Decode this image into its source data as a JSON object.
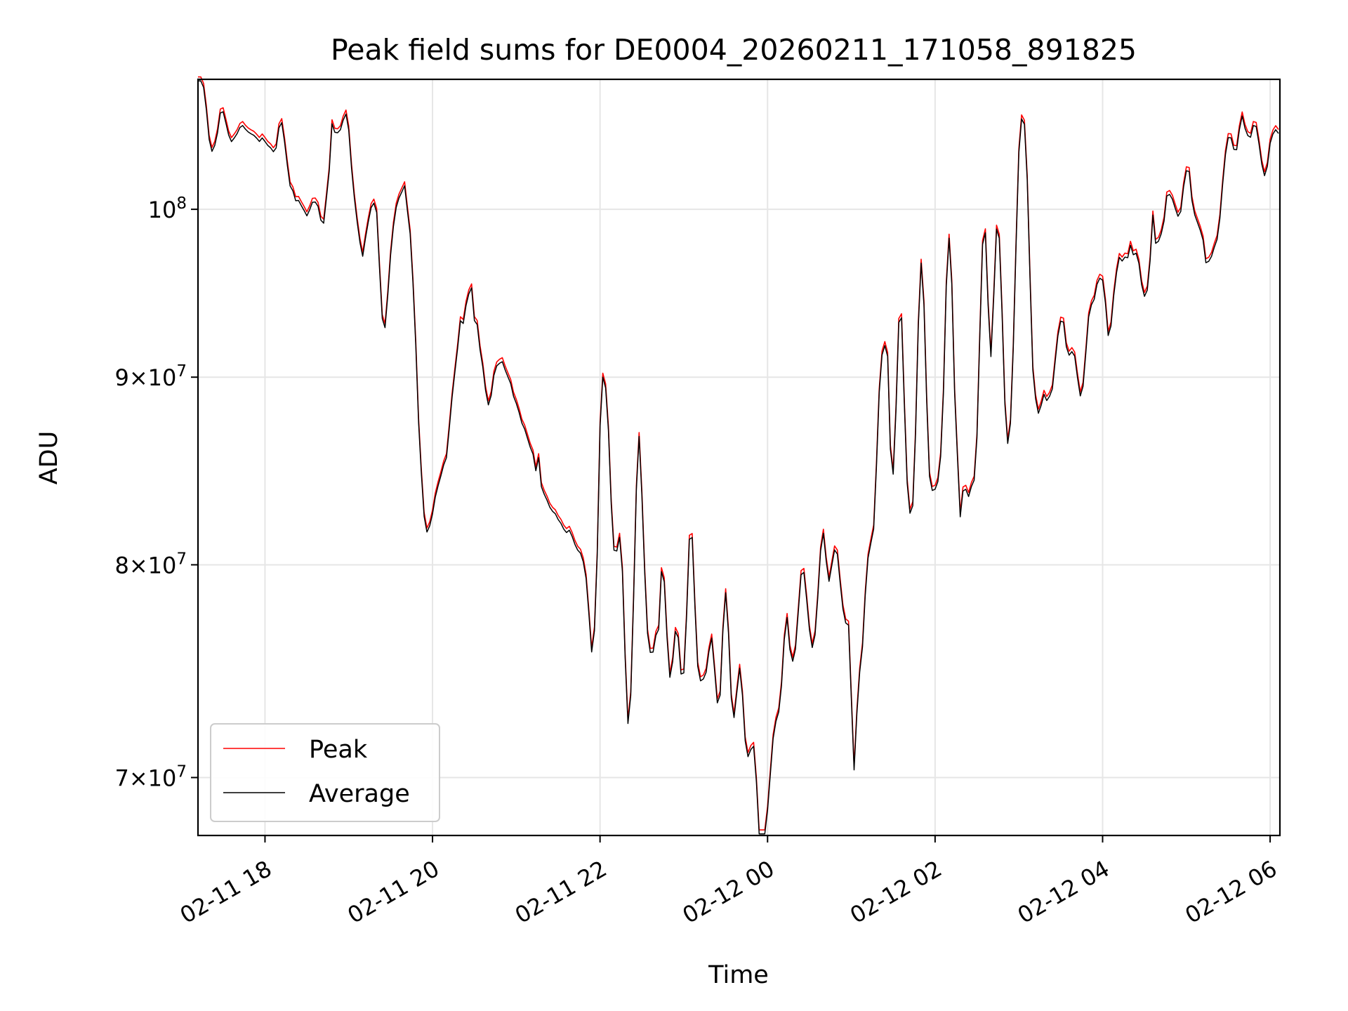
{
  "chart_data": {
    "type": "line",
    "title": "Peak field sums for DE0004_20260211_171058_891825",
    "xlabel": "Time",
    "ylabel": "ADU",
    "yscale": "log",
    "grid": true,
    "legend_location": "lower-left",
    "x_range": [
      "02-11 17:12",
      "02-12 06:07"
    ],
    "ylim": [
      67500000,
      108500000
    ],
    "x_ticks": [
      {
        "time": "02-11 18:00",
        "label": "02-11 18"
      },
      {
        "time": "02-11 20:00",
        "label": "02-11 20"
      },
      {
        "time": "02-11 22:00",
        "label": "02-11 22"
      },
      {
        "time": "02-12 00:00",
        "label": "02-12 00"
      },
      {
        "time": "02-12 02:00",
        "label": "02-12 02"
      },
      {
        "time": "02-12 04:00",
        "label": "02-12 04"
      },
      {
        "time": "02-12 06:00",
        "label": "02-12 06"
      }
    ],
    "y_ticks": [
      {
        "value": 70000000,
        "mantissa": "7",
        "exp": "7",
        "label": "7×10^7"
      },
      {
        "value": 80000000,
        "mantissa": "8",
        "exp": "7",
        "label": "8×10^7"
      },
      {
        "value": 90000000,
        "mantissa": "9",
        "exp": "7",
        "label": "9×10^7"
      },
      {
        "value": 100000000,
        "base": "10",
        "exp": "8",
        "label": "10^8"
      }
    ],
    "series": [
      {
        "name": "Peak",
        "color": "#ff0000",
        "offset_pct": 0.25
      },
      {
        "name": "Average",
        "color": "#000000",
        "offset_pct": 0.0
      }
    ],
    "minutes_per_point": 2,
    "anchors": [
      [
        "02-11 17:12",
        108000000
      ],
      [
        "02-11 17:22",
        106000000
      ],
      [
        "02-11 17:32",
        104000000
      ],
      [
        "02-11 17:45",
        105500000
      ],
      [
        "02-11 18:00",
        104500000
      ],
      [
        "02-11 18:15",
        102000000
      ],
      [
        "02-11 18:30",
        99500000
      ],
      [
        "02-11 18:40",
        101500000
      ],
      [
        "02-11 18:50",
        105000000
      ],
      [
        "02-11 19:00",
        103000000
      ],
      [
        "02-11 19:10",
        97000000
      ],
      [
        "02-11 19:20",
        101500000
      ],
      [
        "02-11 19:30",
        98500000
      ],
      [
        "02-11 19:40",
        100500000
      ],
      [
        "02-11 19:50",
        87500000
      ],
      [
        "02-11 20:00",
        83500000
      ],
      [
        "02-11 20:10",
        85500000
      ],
      [
        "02-11 20:20",
        93500000
      ],
      [
        "02-11 20:35",
        91500000
      ],
      [
        "02-11 20:50",
        91000000
      ],
      [
        "02-11 21:00",
        88500000
      ],
      [
        "02-11 21:20",
        83500000
      ],
      [
        "02-11 21:40",
        81500000
      ],
      [
        "02-11 22:00",
        79000000
      ],
      [
        "02-11 22:20",
        77000000
      ],
      [
        "02-11 22:40",
        75000000
      ],
      [
        "02-11 22:50",
        72000000
      ],
      [
        "02-12 00:05",
        68000000
      ],
      [
        "02-12 00:20",
        75000000
      ],
      [
        "02-12 00:40",
        78000000
      ],
      [
        "02-12 00:58",
        77000000
      ],
      [
        "02-12 01:02",
        69000000
      ],
      [
        "02-12 01:15",
        76000000
      ],
      [
        "02-12 01:40",
        81000000
      ],
      [
        "02-12 02:00",
        83500000
      ],
      [
        "02-12 02:30",
        84000000
      ],
      [
        "02-12 03:00",
        86500000
      ],
      [
        "02-12 03:30",
        90000000
      ],
      [
        "02-12 04:00",
        96000000
      ],
      [
        "02-12 04:30",
        98000000
      ],
      [
        "02-12 05:00",
        99000000
      ],
      [
        "02-12 05:30",
        101000000
      ],
      [
        "02-12 05:50",
        104500000
      ],
      [
        "02-12 06:07",
        105500000
      ]
    ],
    "features": [
      [
        "02-11 17:12",
        2500000
      ],
      [
        "02-11 17:22",
        -2500000
      ],
      [
        "02-11 17:30",
        2000000
      ],
      [
        "02-11 18:12",
        3000000
      ],
      [
        "02-11 18:42",
        -3000000
      ],
      [
        "02-11 18:58",
        2500000
      ],
      [
        "02-11 19:25",
        -7500000
      ],
      [
        "02-11 19:35",
        1000000
      ],
      [
        "02-11 19:45",
        3000000
      ],
      [
        "02-11 19:55",
        -4000000
      ],
      [
        "02-11 20:28",
        2500000
      ],
      [
        "02-11 20:40",
        -3000000
      ],
      [
        "02-11 21:55",
        -3500000
      ],
      [
        "02-11 21:58",
        -4500000
      ],
      [
        "02-11 22:00",
        11000000
      ],
      [
        "02-11 22:05",
        8000000
      ],
      [
        "02-11 22:15",
        5000000
      ],
      [
        "02-11 22:20",
        -6000000
      ],
      [
        "02-11 22:28",
        10500000
      ],
      [
        "02-11 22:45",
        6000000
      ],
      [
        "02-11 22:55",
        5000000
      ],
      [
        "02-11 23:05",
        10500000
      ],
      [
        "02-11 23:13",
        3000000
      ],
      [
        "02-11 23:20",
        6000000
      ],
      [
        "02-11 23:30",
        8500000
      ],
      [
        "02-11 23:40",
        5500000
      ],
      [
        "02-11 23:50",
        3000000
      ],
      [
        "02-11 23:55",
        -2500000
      ],
      [
        "02-12 00:05",
        4000000
      ],
      [
        "02-12 00:13",
        5000000
      ],
      [
        "02-12 00:25",
        4000000
      ],
      [
        "02-12 00:34",
        -1500000
      ],
      [
        "02-12 00:39",
        4000000
      ],
      [
        "02-12 00:49",
        3500000
      ],
      [
        "02-12 01:05",
        3000000
      ],
      [
        "02-12 01:12",
        6000000
      ],
      [
        "02-12 01:20",
        9000000
      ],
      [
        "02-12 01:25",
        11000000
      ],
      [
        "02-12 01:35",
        14000000
      ],
      [
        "02-12 01:50",
        14500000
      ],
      [
        "02-12 02:10",
        14500000
      ],
      [
        "02-12 02:35",
        14500000
      ],
      [
        "02-12 02:45",
        14000000
      ],
      [
        "02-12 03:00",
        14000000
      ],
      [
        "02-12 03:05",
        14000000
      ],
      [
        "02-12 03:30",
        3500000
      ],
      [
        "02-12 03:45",
        -4000000
      ],
      [
        "02-12 04:05",
        -4000000
      ],
      [
        "02-12 04:30",
        -3500000
      ],
      [
        "02-12 04:48",
        2500000
      ],
      [
        "02-12 05:00",
        3500000
      ],
      [
        "02-12 05:15",
        -3500000
      ],
      [
        "02-12 05:22",
        -2500000
      ],
      [
        "02-12 05:30",
        3500000
      ],
      [
        "02-12 05:40",
        3000000
      ],
      [
        "02-12 05:50",
        2000000
      ],
      [
        "02-12 05:55",
        -3000000
      ]
    ],
    "noise_amplitude_pct": 0.55,
    "noise_spike_pct": 1.6
  }
}
